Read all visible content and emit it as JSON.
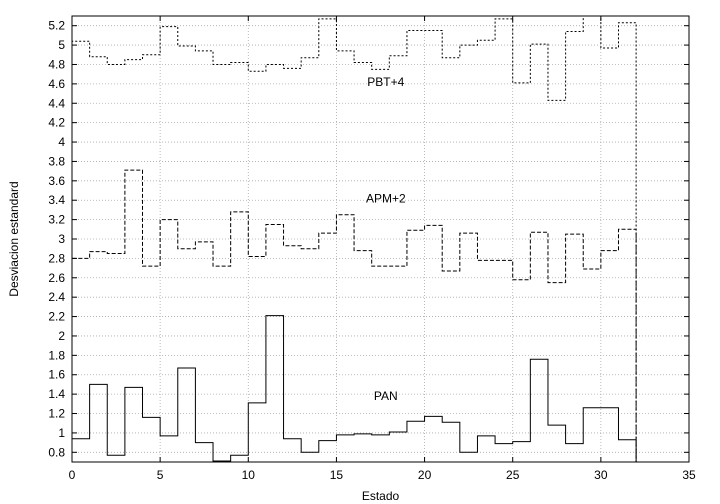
{
  "chart_data": {
    "type": "line",
    "step": true,
    "xlabel": "Estado",
    "ylabel": "Desviacion estandard",
    "xlim": [
      0,
      35
    ],
    "ylim": [
      0.7,
      5.3
    ],
    "grid": true,
    "x_ticks": [
      "0",
      "5",
      "10",
      "15",
      "20",
      "25",
      "30",
      "35"
    ],
    "y_ticks": [
      "0.8",
      "1",
      "1.2",
      "1.4",
      "1.6",
      "1.8",
      "2",
      "2.2",
      "2.4",
      "2.6",
      "2.8",
      "3",
      "3.2",
      "3.4",
      "3.6",
      "3.8",
      "4",
      "4.2",
      "4.4",
      "4.6",
      "4.8",
      "5",
      "5.2"
    ],
    "x": [
      0.5,
      1.5,
      2.5,
      3.5,
      4.5,
      5.5,
      6.5,
      7.5,
      8.5,
      9.5,
      10.5,
      11.5,
      12.5,
      13.5,
      14.5,
      15.5,
      16.5,
      17.5,
      18.5,
      19.5,
      20.5,
      21.5,
      22.5,
      23.5,
      24.5,
      25.5,
      26.5,
      27.5,
      28.5,
      29.5,
      30.5,
      31.5
    ],
    "series": [
      {
        "label": "PAN",
        "values": [
          0.94,
          1.5,
          0.77,
          1.47,
          1.16,
          0.97,
          1.67,
          0.9,
          0.71,
          0.77,
          1.31,
          2.21,
          0.94,
          0.8,
          0.92,
          0.98,
          0.99,
          0.98,
          1.01,
          1.12,
          1.17,
          1.11,
          0.8,
          0.97,
          0.89,
          0.91,
          1.76,
          1.08,
          0.89,
          1.26,
          1.26,
          0.93
        ]
      },
      {
        "label": "APM+2",
        "values": [
          2.8,
          2.87,
          2.85,
          3.71,
          2.72,
          3.2,
          2.9,
          2.97,
          2.72,
          3.28,
          2.82,
          3.15,
          2.93,
          2.9,
          3.06,
          3.25,
          2.88,
          2.72,
          2.72,
          3.09,
          3.14,
          2.67,
          3.06,
          2.78,
          2.78,
          2.58,
          3.07,
          2.55,
          3.05,
          2.69,
          2.88,
          3.1
        ]
      },
      {
        "label": "PBT+4",
        "values": [
          5.04,
          4.88,
          4.8,
          4.85,
          4.9,
          5.19,
          4.99,
          4.94,
          4.8,
          4.82,
          4.73,
          4.8,
          4.76,
          4.87,
          5.27,
          4.94,
          4.82,
          4.75,
          4.89,
          5.15,
          5.15,
          4.87,
          5.0,
          5.05,
          5.27,
          4.61,
          5.01,
          4.43,
          5.14,
          5.3,
          4.97,
          5.23
        ]
      }
    ]
  }
}
